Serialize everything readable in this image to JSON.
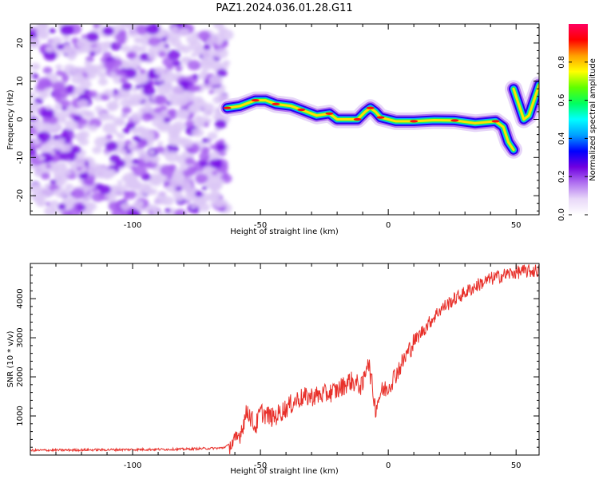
{
  "figure": {
    "title": "PAZ1.2024.036.01.28.G11"
  },
  "chart_data": [
    {
      "type": "heatmap",
      "xlabel": "Height of straight line (km)",
      "ylabel": "Frequency (Hz)",
      "xlim": [
        -140,
        59
      ],
      "ylim": [
        -25,
        25
      ],
      "xticks": [
        -100,
        -50,
        0,
        50
      ],
      "yticks": [
        -20,
        -10,
        0,
        10,
        20
      ],
      "colorbar": {
        "label": "Normalized spectral amplitude",
        "range": [
          0,
          1
        ],
        "ticks": [
          0.0,
          0.2,
          0.4,
          0.6,
          0.8
        ],
        "colormap": [
          "#ffffff",
          "#e8d8f8",
          "#b070f0",
          "#7000e0",
          "#0000ff",
          "#00a0ff",
          "#00ffff",
          "#00ff60",
          "#60ff00",
          "#ffff00",
          "#ffa000",
          "#ff0000",
          "#ff0060"
        ]
      },
      "ridge": [
        {
          "x": -63,
          "y": 3
        },
        {
          "x": -58,
          "y": 3.5
        },
        {
          "x": -52,
          "y": 5
        },
        {
          "x": -48,
          "y": 5
        },
        {
          "x": -44,
          "y": 4
        },
        {
          "x": -38,
          "y": 3.5
        },
        {
          "x": -34,
          "y": 2.5
        },
        {
          "x": -28,
          "y": 1
        },
        {
          "x": -23,
          "y": 1.5
        },
        {
          "x": -20,
          "y": 0
        },
        {
          "x": -12,
          "y": 0
        },
        {
          "x": -9,
          "y": 2
        },
        {
          "x": -7,
          "y": 3
        },
        {
          "x": -5,
          "y": 2
        },
        {
          "x": -3,
          "y": 0.5
        },
        {
          "x": 3,
          "y": -0.5
        },
        {
          "x": 10,
          "y": -0.5
        },
        {
          "x": 18,
          "y": -0.2
        },
        {
          "x": 26,
          "y": -0.3
        },
        {
          "x": 34,
          "y": -1
        },
        {
          "x": 42,
          "y": -0.5
        },
        {
          "x": 45,
          "y": -2
        },
        {
          "x": 47,
          "y": -6
        },
        {
          "x": 49,
          "y": -8
        }
      ],
      "ridge_right": [
        {
          "x": 49,
          "y": 8
        },
        {
          "x": 51,
          "y": 4
        },
        {
          "x": 53,
          "y": 0
        },
        {
          "x": 55,
          "y": 1
        },
        {
          "x": 57,
          "y": 5
        },
        {
          "x": 59,
          "y": 9
        }
      ]
    },
    {
      "type": "line",
      "xlabel": "Height of straight line (km)",
      "ylabel": "SNR (10 * v/v)",
      "xlim": [
        -140,
        59
      ],
      "ylim": [
        0,
        4900
      ],
      "xticks": [
        -100,
        -50,
        0,
        50
      ],
      "yticks": [
        1000,
        2000,
        3000,
        4000
      ],
      "series": [
        {
          "color": "#e8302a",
          "points": [
            [
              -140,
              120
            ],
            [
              -120,
              130
            ],
            [
              -100,
              140
            ],
            [
              -80,
              150
            ],
            [
              -65,
              180
            ],
            [
              -60,
              320
            ],
            [
              -58,
              550
            ],
            [
              -55,
              1150
            ],
            [
              -52,
              700
            ],
            [
              -50,
              1100
            ],
            [
              -45,
              950
            ],
            [
              -40,
              1200
            ],
            [
              -35,
              1450
            ],
            [
              -30,
              1500
            ],
            [
              -25,
              1550
            ],
            [
              -20,
              1650
            ],
            [
              -15,
              1900
            ],
            [
              -10,
              1750
            ],
            [
              -8,
              2500
            ],
            [
              -5,
              1200
            ],
            [
              -3,
              1600
            ],
            [
              0,
              1750
            ],
            [
              5,
              2300
            ],
            [
              10,
              2900
            ],
            [
              15,
              3300
            ],
            [
              20,
              3700
            ],
            [
              25,
              3950
            ],
            [
              30,
              4150
            ],
            [
              35,
              4350
            ],
            [
              40,
              4500
            ],
            [
              45,
              4600
            ],
            [
              50,
              4680
            ],
            [
              55,
              4700
            ],
            [
              59,
              4720
            ]
          ]
        }
      ]
    }
  ]
}
